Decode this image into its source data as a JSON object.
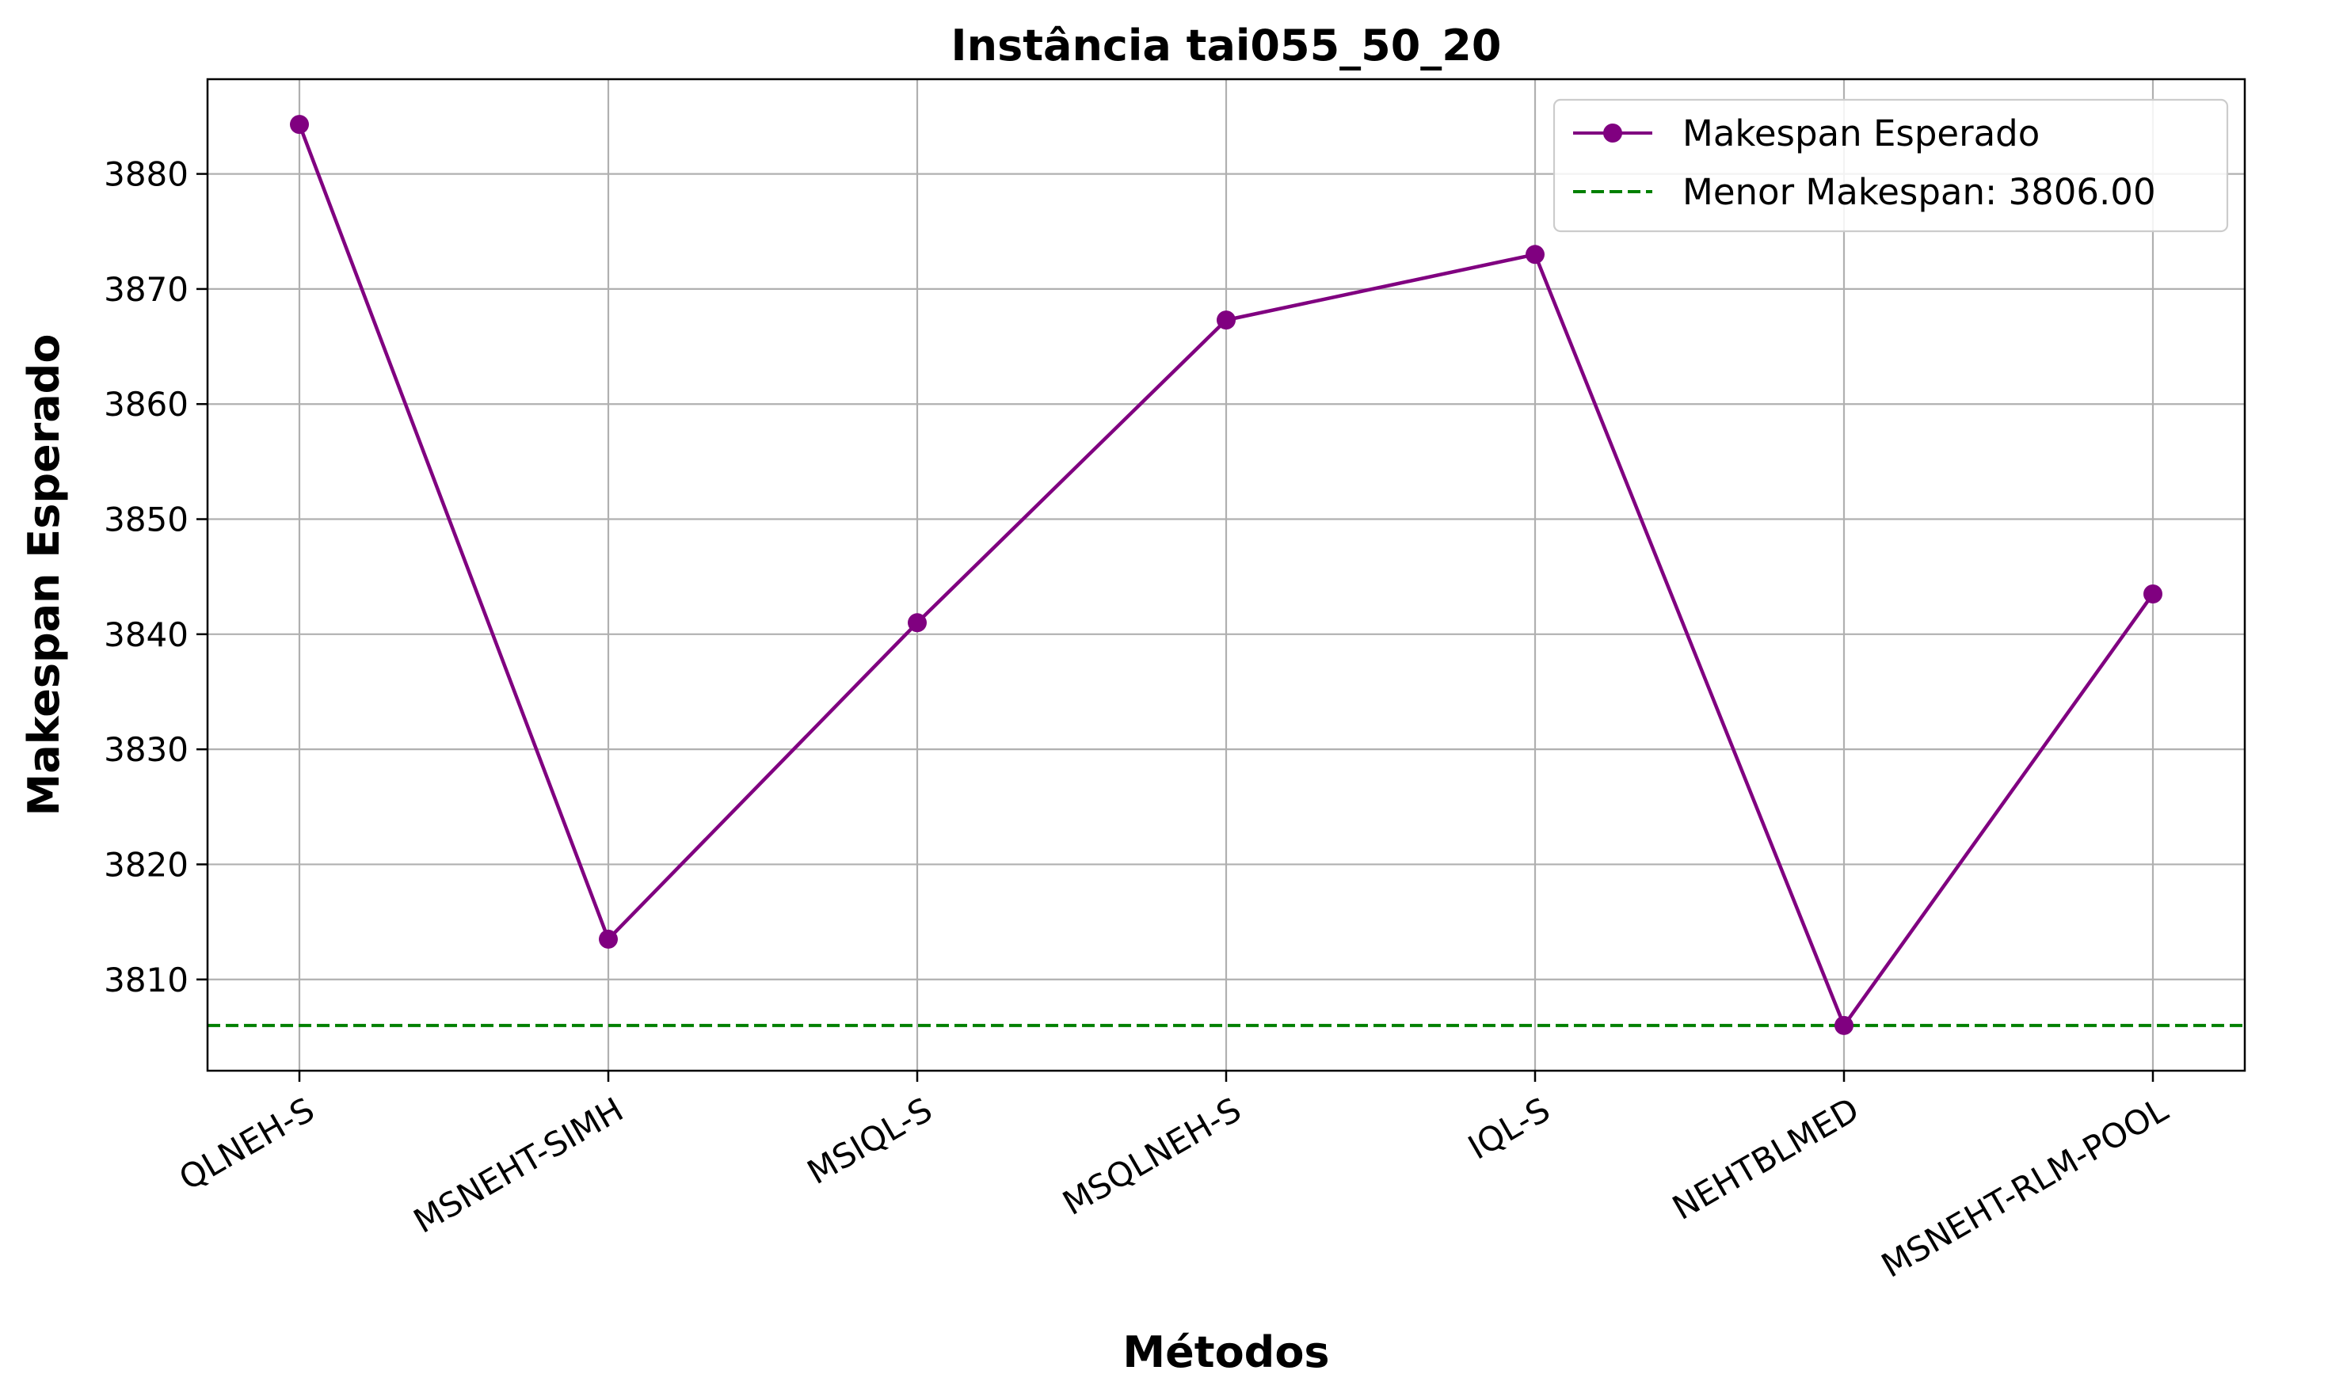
{
  "chart_data": {
    "type": "line",
    "title": "Instância tai055_50_20",
    "xlabel": "Métodos",
    "ylabel": "Makespan Esperado",
    "categories": [
      "QLNEH-S",
      "MSNEHT-SIMH",
      "MSIQL-S",
      "MSQLNEH-S",
      "IQL-S",
      "NEHTBLMED",
      "MSNEHT-RLM-POOL"
    ],
    "series": [
      {
        "name": "Makespan Esperado",
        "values": [
          3884.3,
          3813.5,
          3841.0,
          3867.3,
          3873.0,
          3806.0,
          3843.5
        ],
        "color": "#800080",
        "marker": "circle"
      }
    ],
    "reference_line": {
      "label": "Menor Makespan: 3806.00",
      "value": 3806.0,
      "color": "#008000",
      "style": "dashed"
    },
    "yticks": [
      3810,
      3820,
      3830,
      3840,
      3850,
      3860,
      3870,
      3880
    ],
    "ylim": [
      3802.07,
      3888.23
    ],
    "grid": true,
    "legend_position": "top-right",
    "xtick_rotation": 30
  }
}
